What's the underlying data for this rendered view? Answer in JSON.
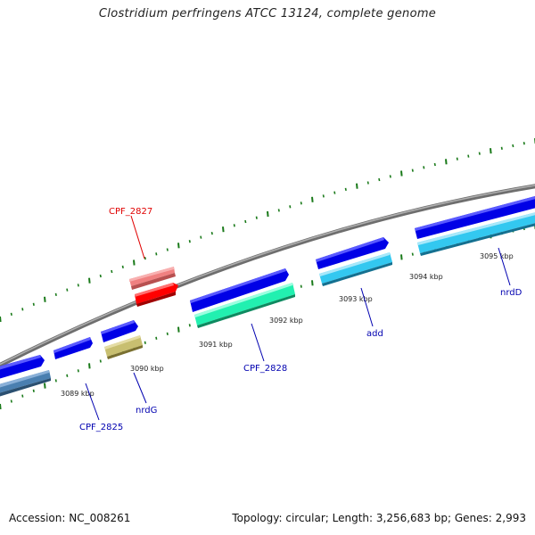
{
  "title": "Clostridium perfringens ATCC 13124, complete genome",
  "footer": {
    "accession": "Accession: NC_008261",
    "summary": "Topology: circular; Length: 3,256,683 bp; Genes: 2,993"
  },
  "ticks": [
    "3089 kbp",
    "3090 kbp",
    "3091 kbp",
    "3092 kbp",
    "3093 kbp",
    "3094 kbp",
    "3095 kbp"
  ],
  "gene_labels": [
    {
      "name": "CPF_2827",
      "color": "#e00000"
    },
    {
      "name": "CPF_2825",
      "color": "#0000b0"
    },
    {
      "name": "nrdG",
      "color": "#0000b0"
    },
    {
      "name": "CPF_2828",
      "color": "#0000b0"
    },
    {
      "name": "add",
      "color": "#0000b0"
    },
    {
      "name": "nrdD",
      "color": "#0000b0"
    }
  ],
  "colors": {
    "backbone": "#8a8a8a",
    "gc_ticks": "#1a7a1a",
    "cds": "#0000e6",
    "red_feature": "#ff0000",
    "pink_feature": "#f08080",
    "steel_feature": "#4a7fb0",
    "olive_feature": "#c8bf70",
    "aqua_feature": "#22f0b0",
    "sky_feature": "#33c8f0"
  }
}
